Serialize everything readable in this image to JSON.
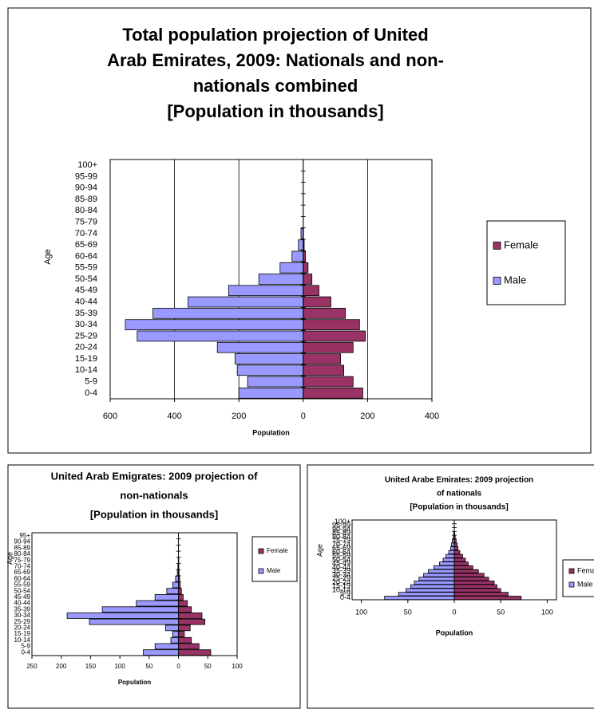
{
  "chart_data": [
    {
      "type": "bar",
      "title": [
        "Total population projection of United",
        "Arab Emirates, 2009:  Nationals and non-",
        "nationals combined",
        "[Population in thousands]"
      ],
      "x_label": "Population",
      "y_label": "Age",
      "categories": [
        "0-4",
        "5-9",
        "10-14",
        "15-19",
        "20-24",
        "25-29",
        "30-34",
        "35-39",
        "40-44",
        "45-49",
        "50-54",
        "55-59",
        "60-64",
        "65-69",
        "70-74",
        "75-79",
        "80-84",
        "85-89",
        "90-94",
        "95-99",
        "100+"
      ],
      "series": [
        {
          "name": "Female",
          "color": "#993366",
          "values": [
            185,
            155,
            126,
            116,
            155,
            193,
            175,
            131,
            86,
            49,
            27,
            15,
            7,
            3,
            1,
            0,
            0,
            0,
            0,
            0,
            0
          ]
        },
        {
          "name": "Male",
          "color": "#9999ff",
          "values": [
            -200,
            -173,
            -205,
            -212,
            -267,
            -516,
            -553,
            -467,
            -358,
            -232,
            -138,
            -72,
            -35,
            -15,
            -7,
            0,
            0,
            0,
            0,
            0,
            0
          ]
        }
      ],
      "xlim": [
        -600,
        400
      ],
      "xticks": [
        {
          "value": -600,
          "label": "600"
        },
        {
          "value": -400,
          "label": "400"
        },
        {
          "value": -200,
          "label": "200"
        },
        0,
        200,
        400
      ],
      "grid": true
    },
    {
      "type": "bar",
      "title": [
        "United Arab Emigrates:  2009 projection of",
        "non-nationals",
        "[Population in thousands]"
      ],
      "x_label": "Population",
      "y_label": "Age",
      "categories": [
        "0-4",
        "5-9",
        "10-14",
        "15-19",
        "20-24",
        "25-29",
        "30-34",
        "35-39",
        "40-44",
        "45-49",
        "50-54",
        "55-59",
        "60-64",
        "65-69",
        "70-74",
        "75-79",
        "80-84",
        "85-89",
        "90-94",
        "95+"
      ],
      "series": [
        {
          "name": "Female",
          "color": "#993366",
          "values": [
            55,
            35,
            22,
            10,
            20,
            45,
            40,
            22,
            15,
            8,
            5,
            3,
            2,
            1,
            0.5,
            0.5,
            0,
            0,
            0,
            0
          ]
        },
        {
          "name": "Male",
          "color": "#9999ff",
          "values": [
            -60,
            -40,
            -13,
            -10,
            -22,
            -152,
            -190,
            -130,
            -72,
            -40,
            -20,
            -10,
            -5,
            -2,
            -1,
            -0.5,
            0,
            0,
            0,
            0
          ]
        }
      ],
      "xlim": [
        -250,
        100
      ],
      "xticks": [
        {
          "value": -250,
          "label": "250"
        },
        {
          "value": -200,
          "label": "200"
        },
        {
          "value": -150,
          "label": "150"
        },
        {
          "value": -100,
          "label": "100"
        },
        {
          "value": -50,
          "label": "50"
        },
        0,
        50,
        100
      ],
      "grid": false
    },
    {
      "type": "bar",
      "title": [
        "United Arabe Emirates:  2009 projection",
        "of nationals",
        "[Population in thousands]"
      ],
      "x_label": "Population",
      "y_label": "Age",
      "categories": [
        "0-4",
        "5-9",
        "10-14",
        "15-19",
        "20-24",
        "25-29",
        "30-34",
        "35-39",
        "40-44",
        "45-49",
        "50-54",
        "55-59",
        "60-64",
        "65-69",
        "70-74",
        "75-79",
        "80-84",
        "85-89",
        "90-94",
        "95-99",
        "100+"
      ],
      "series": [
        {
          "name": "Female",
          "color": "#993366",
          "values": [
            72,
            58,
            50,
            46,
            43,
            37,
            32,
            26,
            20,
            15,
            12,
            9,
            6,
            4,
            3,
            2,
            1,
            0.5,
            0,
            0,
            0
          ]
        },
        {
          "name": "Male",
          "color": "#9999ff",
          "values": [
            -75,
            -60,
            -52,
            -47,
            -43,
            -38,
            -33,
            -28,
            -22,
            -16,
            -12,
            -9,
            -6,
            -4,
            -3,
            -2,
            -1,
            -0.5,
            0,
            0,
            0
          ]
        }
      ],
      "xlim": [
        -110,
        110
      ],
      "xticks": [
        {
          "value": -100,
          "label": "100"
        },
        {
          "value": -50,
          "label": "50"
        },
        0,
        50,
        100
      ],
      "grid": false
    }
  ]
}
